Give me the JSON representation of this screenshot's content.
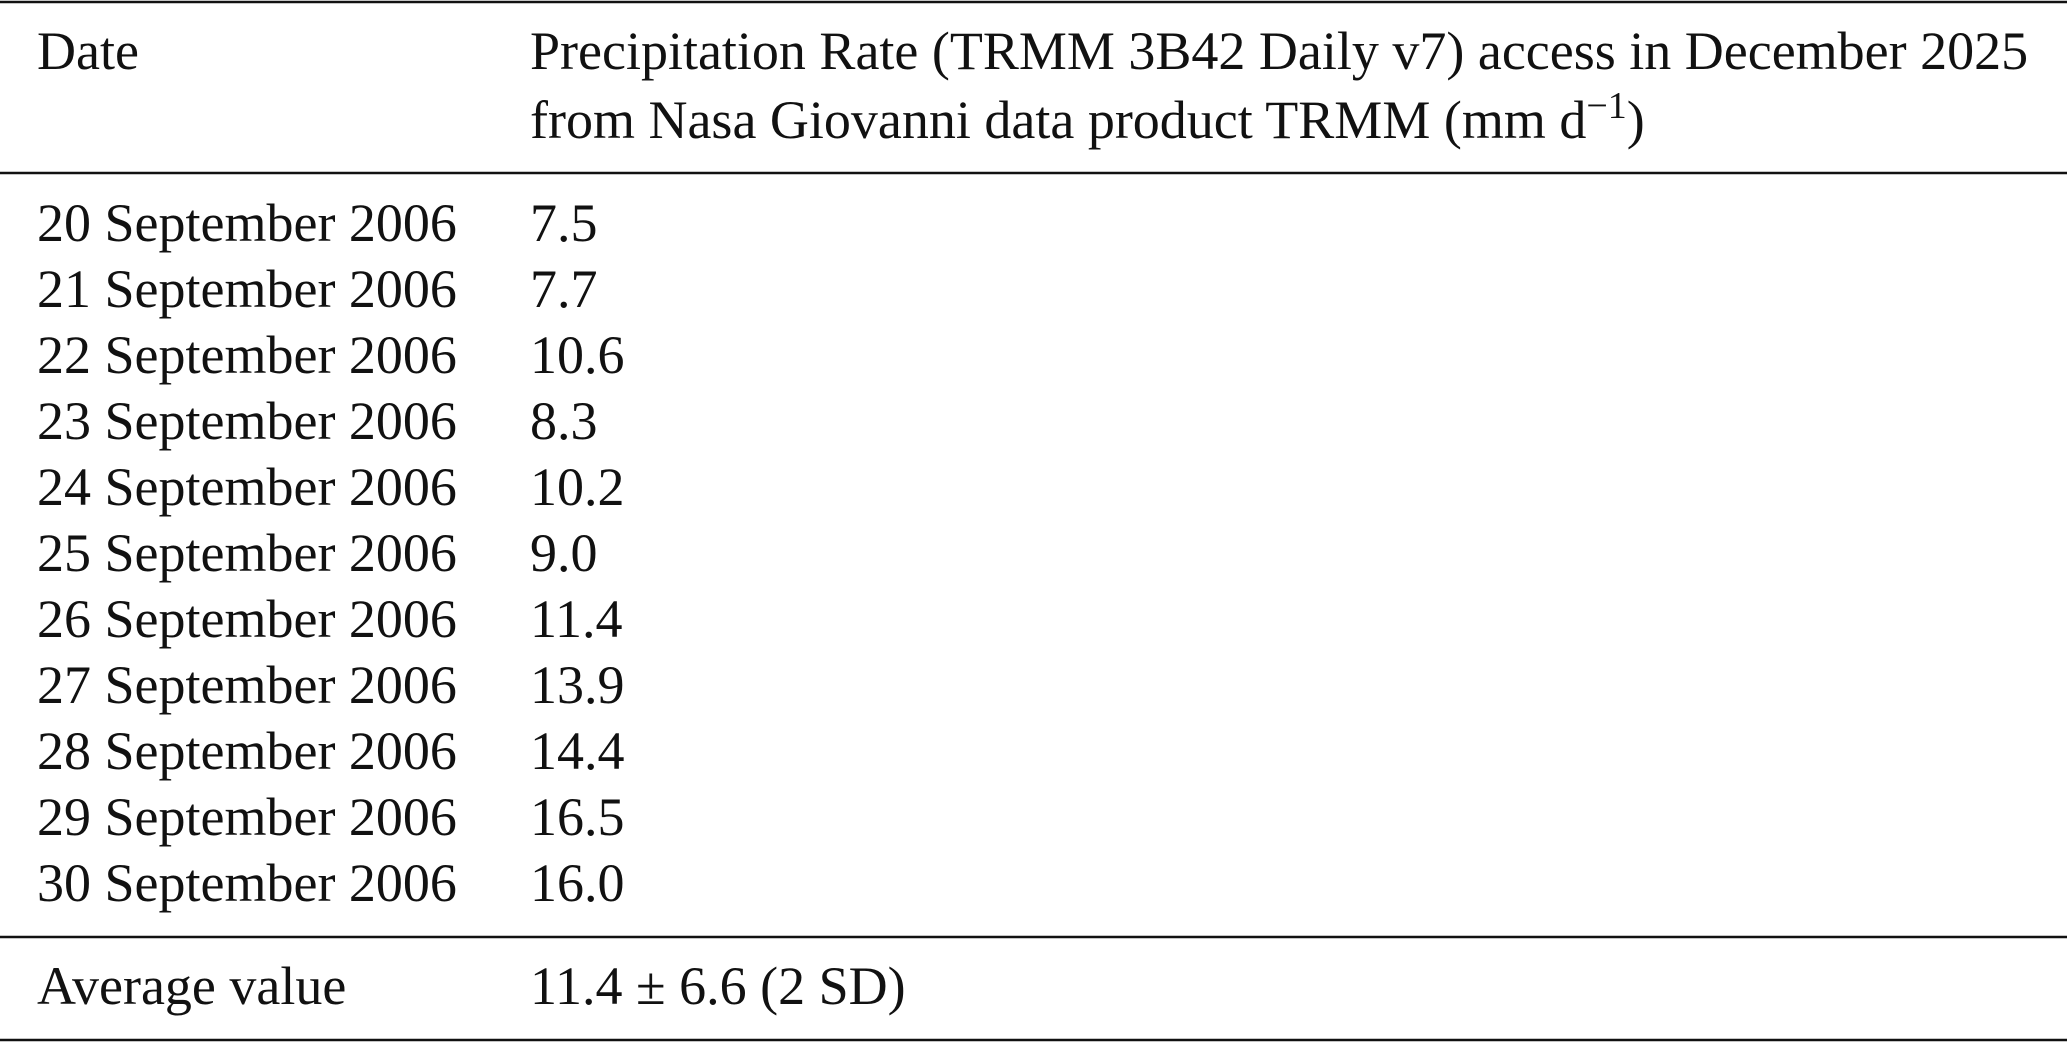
{
  "table": {
    "header": {
      "date": "Date",
      "value": {
        "lines": [
          "Precipitation Rate (TRMM 3B42 Daily v7) access in December 2025",
          "from Nasa Giovanni data product TRMM (mm d"
        ],
        "superscript": "−1",
        "closing": ")"
      }
    },
    "rows": [
      [
        "20 September 2006",
        "7.5"
      ],
      [
        "21 September 2006",
        "7.7"
      ],
      [
        "22 September 2006",
        "10.6"
      ],
      [
        "23 September 2006",
        "8.3"
      ],
      [
        "24 September 2006",
        "10.2"
      ],
      [
        "25 September 2006",
        "9.0"
      ],
      [
        "26 September 2006",
        "11.4"
      ],
      [
        "27 September 2006",
        "13.9"
      ],
      [
        "28 September 2006",
        "14.4"
      ],
      [
        "29 September 2006",
        "16.5"
      ],
      [
        "30 September 2006",
        "16.0"
      ]
    ],
    "footer": {
      "label": "Average value",
      "value": "11.4 ± 6.6 (2 SD)"
    }
  }
}
